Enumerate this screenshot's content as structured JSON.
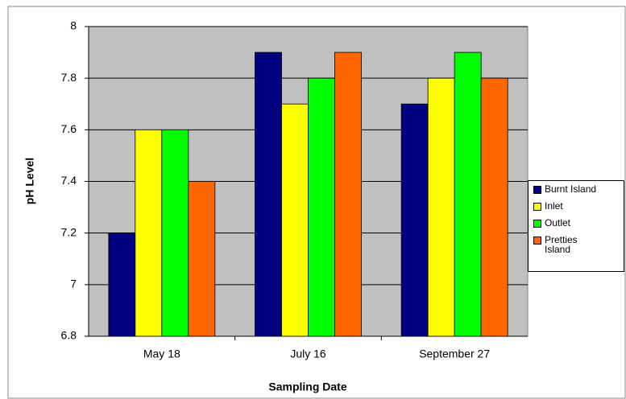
{
  "chart_data": {
    "type": "bar",
    "x_label": "Sampling Date",
    "y_label": "pH Level",
    "categories": [
      "May 18",
      "July 16",
      "September 27"
    ],
    "series": [
      {
        "name": "Burnt Island",
        "color": "#000080",
        "values": [
          7.2,
          7.9,
          7.7
        ]
      },
      {
        "name": "Inlet",
        "color": "#ffff00",
        "values": [
          7.6,
          7.7,
          7.8
        ]
      },
      {
        "name": "Outlet",
        "color": "#00ff00",
        "values": [
          7.6,
          7.8,
          7.9
        ]
      },
      {
        "name": "Pretties Island",
        "color": "#ff6600",
        "values": [
          7.4,
          7.9,
          7.8
        ]
      }
    ],
    "ylim": [
      6.8,
      8
    ],
    "yticks": [
      6.8,
      7,
      7.2,
      7.4,
      7.6,
      7.8,
      8
    ],
    "grid": true,
    "legend": "right"
  }
}
